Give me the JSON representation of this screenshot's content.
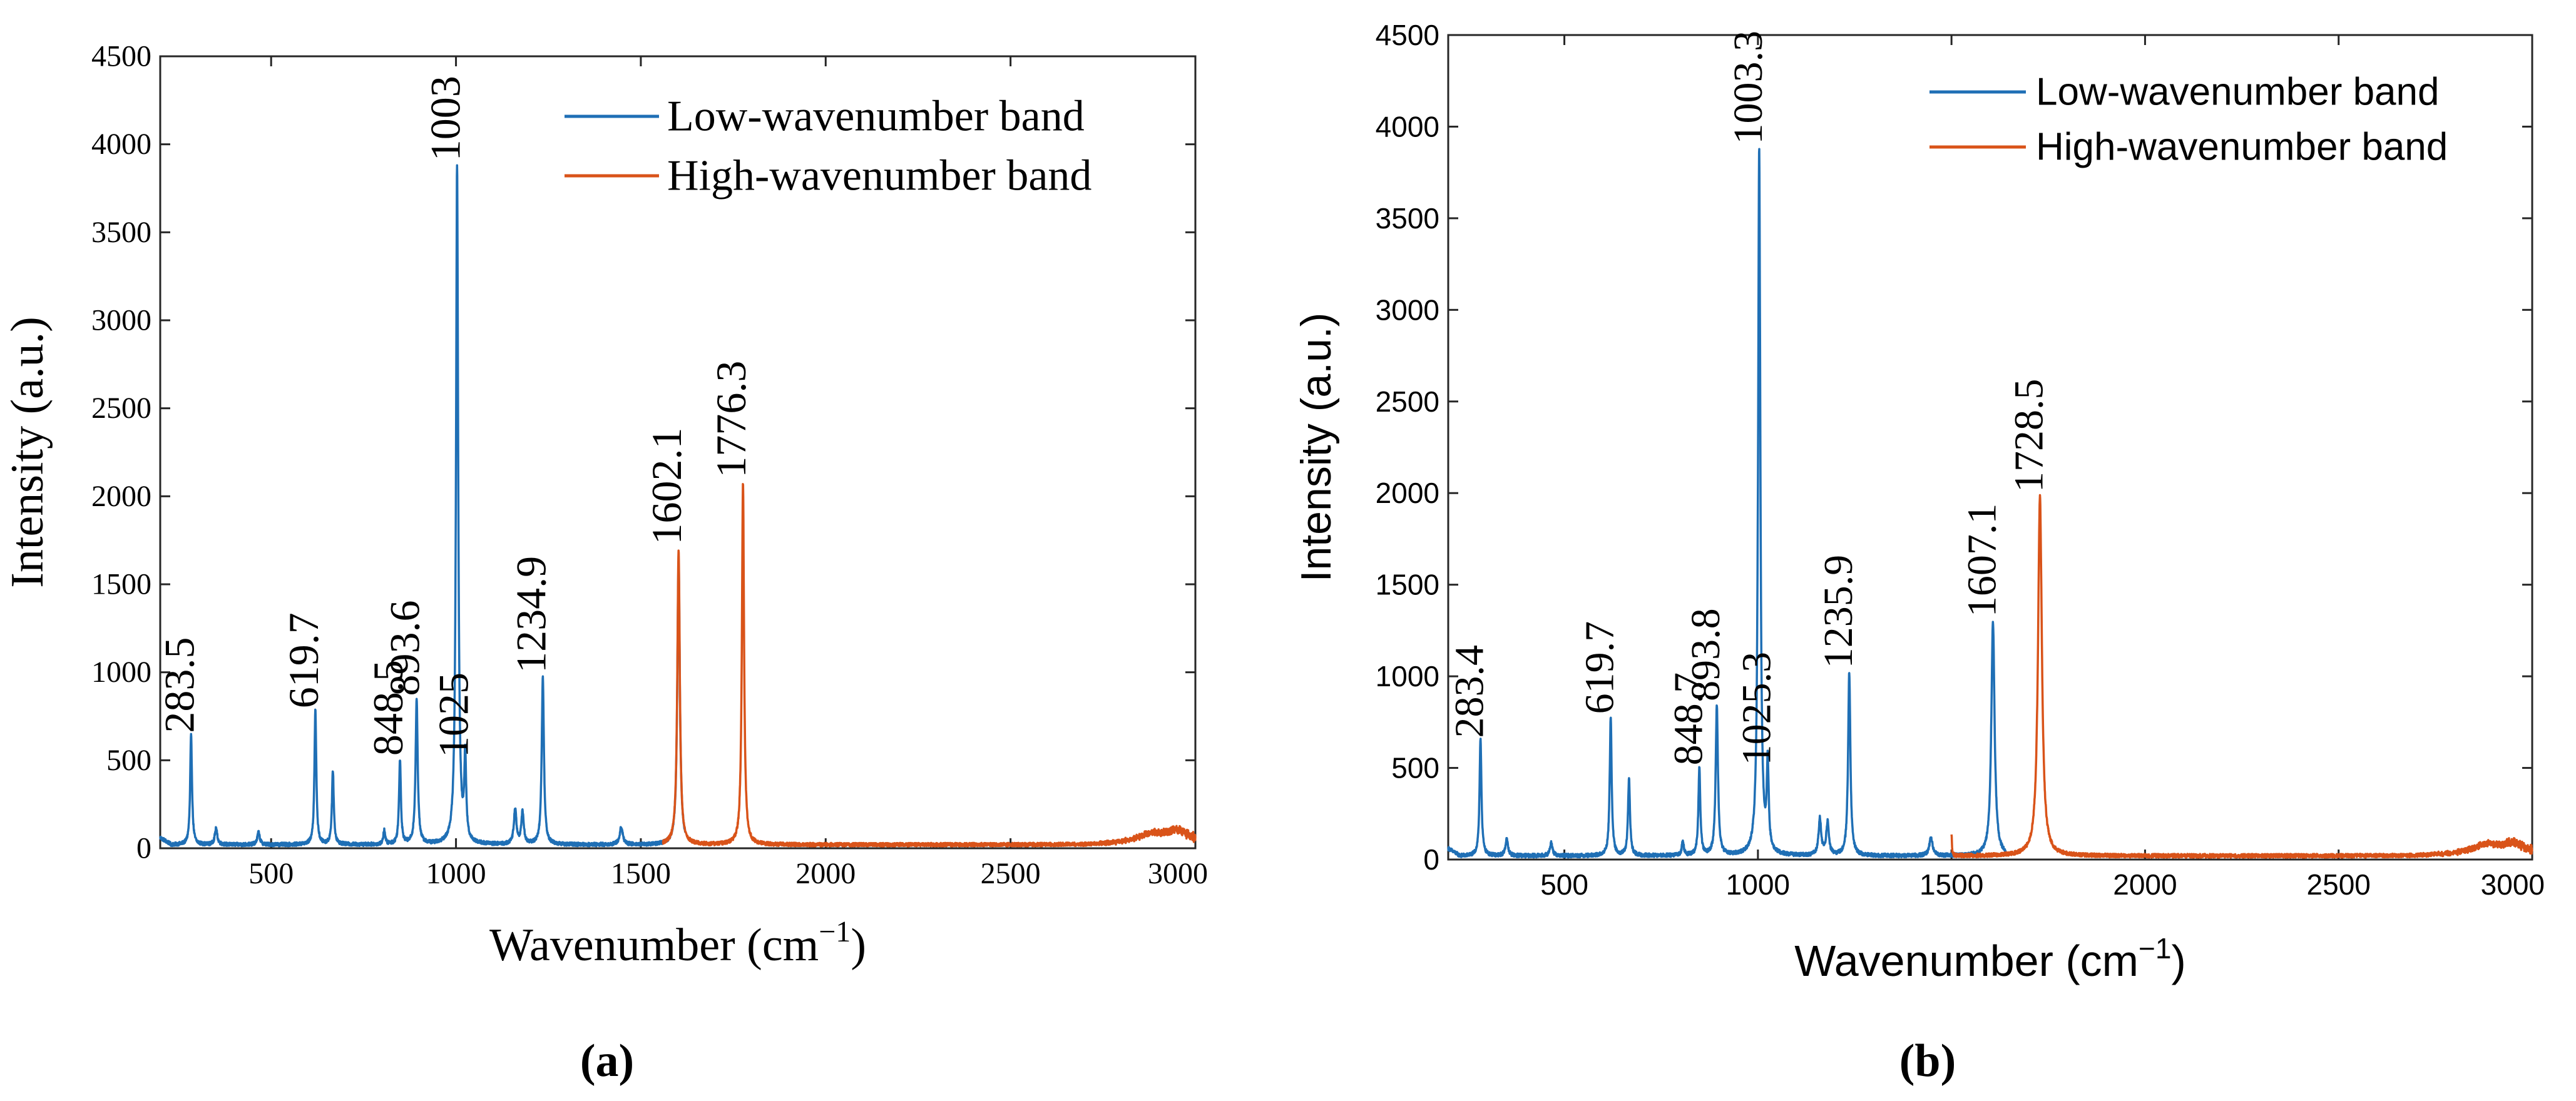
{
  "chart_data": [
    {
      "panel": "(a)",
      "type": "line",
      "xlabel": "Wavenumber (cm",
      "xlabel_sup": "−1",
      "xlabel_close": ")",
      "ylabel": "Intensity (a.u.)",
      "xlim": [
        200,
        3000
      ],
      "ylim": [
        0,
        4500
      ],
      "xticks": [
        500,
        1000,
        1500,
        2000,
        2500,
        3000
      ],
      "yticks": [
        0,
        500,
        1000,
        1500,
        2000,
        2500,
        3000,
        3500,
        4000,
        4500
      ],
      "legend": [
        "Low-wavenumber band",
        "High-wavenumber band"
      ],
      "legend_position": "top-right",
      "series": [
        {
          "name": "Low-wavenumber band",
          "color": "#1f6fb5",
          "range": [
            200,
            1620
          ],
          "peaks": [
            {
              "x": 283.5,
              "y": 620,
              "w": 3
            },
            {
              "x": 351,
              "y": 90,
              "w": 4
            },
            {
              "x": 466,
              "y": 70,
              "w": 4
            },
            {
              "x": 619.7,
              "y": 760,
              "w": 3
            },
            {
              "x": 667,
              "y": 420,
              "w": 3
            },
            {
              "x": 806,
              "y": 80,
              "w": 3
            },
            {
              "x": 848.5,
              "y": 480,
              "w": 3
            },
            {
              "x": 893.6,
              "y": 820,
              "w": 3.5
            },
            {
              "x": 1003,
              "y": 3860,
              "w": 3.5
            },
            {
              "x": 1025,
              "y": 470,
              "w": 3
            },
            {
              "x": 1160,
              "y": 200,
              "w": 4
            },
            {
              "x": 1180,
              "y": 180,
              "w": 4
            },
            {
              "x": 1234.9,
              "y": 950,
              "w": 3.5
            },
            {
              "x": 1447,
              "y": 100,
              "w": 5
            },
            {
              "x": 1602.1,
              "y": 1620,
              "w": 4
            }
          ]
        },
        {
          "name": "High-wavenumber band",
          "color": "#d95319",
          "range": [
            1560,
            3000
          ],
          "peaks": [
            {
              "x": 1602.1,
              "y": 1680,
              "w": 4
            },
            {
              "x": 1776.3,
              "y": 2060,
              "w": 3.5
            },
            {
              "x": 2880,
              "y": 50,
              "w": 40
            },
            {
              "x": 2950,
              "y": 60,
              "w": 30
            }
          ]
        }
      ],
      "annotations": [
        {
          "label": "283.5",
          "x": 283.5,
          "y": 620
        },
        {
          "label": "619.7",
          "x": 619.7,
          "y": 760
        },
        {
          "label": "848.5",
          "x": 848.5,
          "y": 490
        },
        {
          "label": "893.6",
          "x": 893.6,
          "y": 830
        },
        {
          "label": "1003",
          "x": 1003,
          "y": 3870
        },
        {
          "label": "1025",
          "x": 1025,
          "y": 480
        },
        {
          "label": "1234.9",
          "x": 1234.9,
          "y": 960
        },
        {
          "label": "1602.1",
          "x": 1602.1,
          "y": 1690
        },
        {
          "label": "1776.3",
          "x": 1776.3,
          "y": 2070
        }
      ]
    },
    {
      "panel": "(b)",
      "type": "line",
      "xlabel": "Wavenumber (cm",
      "xlabel_sup": "−1",
      "xlabel_close": ")",
      "ylabel": "Intensity (a.u.)",
      "xlim": [
        200,
        3000
      ],
      "ylim": [
        0,
        4500
      ],
      "xticks": [
        500,
        1000,
        1500,
        2000,
        2500,
        3000
      ],
      "yticks": [
        0,
        500,
        1000,
        1500,
        2000,
        2500,
        3000,
        3500,
        4000,
        4500
      ],
      "legend": [
        "Low-wavenumber band",
        "High-wavenumber band"
      ],
      "legend_position": "top-right",
      "series": [
        {
          "name": "Low-wavenumber band",
          "color": "#1f6fb5",
          "range": [
            200,
            1640
          ],
          "peaks": [
            {
              "x": 283.4,
              "y": 630,
              "w": 3
            },
            {
              "x": 351,
              "y": 90,
              "w": 4
            },
            {
              "x": 466,
              "y": 70,
              "w": 4
            },
            {
              "x": 619.7,
              "y": 760,
              "w": 3
            },
            {
              "x": 667,
              "y": 420,
              "w": 3
            },
            {
              "x": 806,
              "y": 80,
              "w": 3
            },
            {
              "x": 848.7,
              "y": 470,
              "w": 3
            },
            {
              "x": 893.8,
              "y": 820,
              "w": 3.5
            },
            {
              "x": 1003.3,
              "y": 3860,
              "w": 3.5
            },
            {
              "x": 1025.3,
              "y": 470,
              "w": 3
            },
            {
              "x": 1160,
              "y": 200,
              "w": 4
            },
            {
              "x": 1180,
              "y": 180,
              "w": 4
            },
            {
              "x": 1235.9,
              "y": 1000,
              "w": 3.5
            },
            {
              "x": 1447,
              "y": 100,
              "w": 5
            },
            {
              "x": 1607.1,
              "y": 1280,
              "w": 5
            }
          ]
        },
        {
          "name": "High-wavenumber band",
          "color": "#d95319",
          "range": [
            1500,
            3000
          ],
          "peaks": [
            {
              "x": 1500,
              "y": 110,
              "w": 1.5
            },
            {
              "x": 1728.5,
              "y": 1960,
              "w": 6
            },
            {
              "x": 2880,
              "y": 50,
              "w": 40
            },
            {
              "x": 2950,
              "y": 45,
              "w": 30
            }
          ]
        }
      ],
      "annotations": [
        {
          "label": "283.4",
          "x": 283.4,
          "y": 630
        },
        {
          "label": "619.7",
          "x": 619.7,
          "y": 760
        },
        {
          "label": "848.7",
          "x": 848.7,
          "y": 480
        },
        {
          "label": "893.8",
          "x": 893.8,
          "y": 830
        },
        {
          "label": "1003.3",
          "x": 1003.3,
          "y": 3870
        },
        {
          "label": "1025.3",
          "x": 1025.3,
          "y": 480
        },
        {
          "label": "1235.9",
          "x": 1235.9,
          "y": 1010
        },
        {
          "label": "1607.1",
          "x": 1607.1,
          "y": 1290
        },
        {
          "label": "1728.5",
          "x": 1728.5,
          "y": 1970
        }
      ]
    }
  ]
}
